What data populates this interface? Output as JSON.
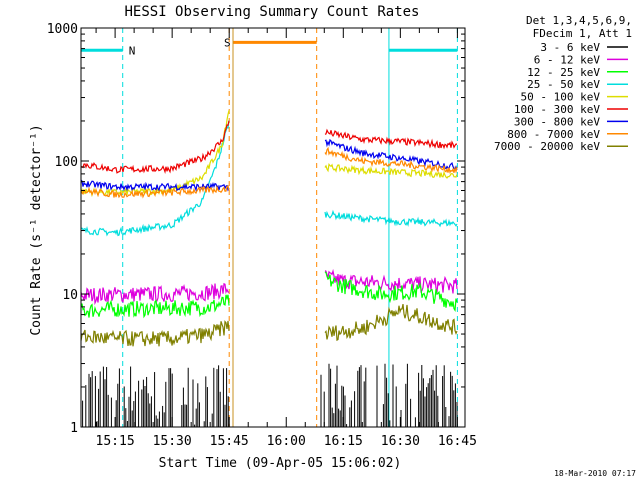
{
  "chart_data": {
    "type": "line",
    "title": "HESSI Observing Summary Count Rates",
    "xlabel": "Start Time (09-Apr-05 15:06:02)",
    "ylabel": "Count Rate (s⁻¹ detector⁻¹)",
    "yscale": "log",
    "ylim": [
      1,
      1000
    ],
    "xlim": [
      "15:06:02",
      "16:47:00"
    ],
    "x_ticks": [
      "15:15",
      "15:30",
      "15:45",
      "16:00",
      "16:15",
      "16:30",
      "16:45"
    ],
    "y_ticks": [
      "1",
      "10",
      "100",
      "1000"
    ],
    "legend_header": [
      "Det 1,3,4,5,6,9,",
      "FDecim 1, Att 1"
    ],
    "legend_position": "right",
    "series": [
      {
        "name": "3 - 6 keV",
        "color": "#000000",
        "segments": [
          {
            "x": [
              "15:06",
              "15:45"
            ],
            "y": [
              1.6,
              1.6
            ],
            "noisy": true,
            "range": [
              1.0,
              3.0
            ]
          },
          {
            "x": [
              "16:09",
              "16:45"
            ],
            "y": [
              1.6,
              1.6
            ],
            "noisy": true,
            "range": [
              1.0,
              3.0
            ]
          }
        ]
      },
      {
        "name": "6 - 12 keV",
        "color": "#dd00dd",
        "segments": [
          {
            "x": [
              "15:06",
              "15:15",
              "15:30",
              "15:40",
              "15:45"
            ],
            "y": [
              9.8,
              9.9,
              10.0,
              10.3,
              11.0
            ]
          },
          {
            "x": [
              "16:10",
              "16:15",
              "16:30",
              "16:45"
            ],
            "y": [
              13.5,
              12.5,
              12.0,
              11.5
            ]
          }
        ]
      },
      {
        "name": "12 - 25 keV",
        "color": "#00ff00",
        "segments": [
          {
            "x": [
              "15:06",
              "15:15",
              "15:30",
              "15:40",
              "15:45"
            ],
            "y": [
              7.5,
              7.7,
              7.8,
              8.0,
              8.8
            ]
          },
          {
            "x": [
              "16:10",
              "16:15",
              "16:25",
              "16:35",
              "16:45"
            ],
            "y": [
              13.0,
              11.5,
              10.0,
              10.5,
              8.5
            ]
          }
        ]
      },
      {
        "name": "25 - 50 keV",
        "color": "#00dddd",
        "segments": [
          {
            "x": [
              "15:06",
              "15:15",
              "15:30",
              "15:38",
              "15:42",
              "15:45"
            ],
            "y": [
              30,
              29,
              33,
              50,
              100,
              200
            ]
          },
          {
            "x": [
              "16:10",
              "16:20",
              "16:30",
              "16:45"
            ],
            "y": [
              40,
              37,
              35,
              34
            ]
          }
        ]
      },
      {
        "name": "50 - 100 keV",
        "color": "#dddd00",
        "segments": [
          {
            "x": [
              "15:06",
              "15:15",
              "15:30",
              "15:38",
              "15:43",
              "15:45"
            ],
            "y": [
              59,
              58,
              60,
              75,
              130,
              250
            ]
          },
          {
            "x": [
              "16:10",
              "16:20",
              "16:30",
              "16:45"
            ],
            "y": [
              90,
              85,
              82,
              78
            ]
          }
        ]
      },
      {
        "name": "100 - 300 keV",
        "color": "#ee0000",
        "segments": [
          {
            "x": [
              "15:06",
              "15:15",
              "15:30",
              "15:38",
              "15:43",
              "15:45"
            ],
            "y": [
              95,
              86,
              88,
              105,
              140,
              200
            ]
          },
          {
            "x": [
              "16:10",
              "16:20",
              "16:30",
              "16:45"
            ],
            "y": [
              165,
              145,
              140,
              130
            ]
          }
        ]
      },
      {
        "name": "300 - 800 keV",
        "color": "#0000ee",
        "segments": [
          {
            "x": [
              "15:06",
              "15:15",
              "15:30",
              "15:45"
            ],
            "y": [
              68,
              64,
              64,
              64
            ]
          },
          {
            "x": [
              "16:10",
              "16:20",
              "16:30",
              "16:45"
            ],
            "y": [
              140,
              115,
              105,
              90
            ]
          }
        ]
      },
      {
        "name": "800 - 7000 keV",
        "color": "#ff8800",
        "segments": [
          {
            "x": [
              "15:06",
              "15:15",
              "15:30",
              "15:45"
            ],
            "y": [
              60,
              56,
              58,
              62
            ]
          },
          {
            "x": [
              "16:10",
              "16:20",
              "16:30",
              "16:45"
            ],
            "y": [
              120,
              100,
              95,
              85
            ]
          }
        ]
      },
      {
        "name": "7000 - 20000 keV",
        "color": "#808000",
        "segments": [
          {
            "x": [
              "15:06",
              "15:15",
              "15:30",
              "15:40",
              "15:45"
            ],
            "y": [
              4.8,
              4.6,
              4.6,
              5.0,
              5.8
            ]
          },
          {
            "x": [
              "16:10",
              "16:20",
              "16:30",
              "16:45"
            ],
            "y": [
              5.0,
              5.5,
              7.5,
              5.5
            ]
          }
        ]
      }
    ],
    "annotations": [
      {
        "label": "N",
        "color": "#00dddd",
        "bar_x": [
          "15:06",
          "15:17"
        ],
        "bar_y": 680,
        "dashed_lines": [
          "15:17",
          "16:45"
        ],
        "solid_lines": [
          "16:27"
        ],
        "bar2_x": [
          "16:27",
          "16:45"
        ]
      },
      {
        "label": "S",
        "color": "#ff8800",
        "bar_x": [
          "15:46",
          "16:08"
        ],
        "bar_y": 780,
        "dashed_lines": [
          "15:45",
          "16:08"
        ]
      }
    ],
    "extra_vlines": [
      {
        "x": "15:46",
        "color": "#c89020"
      }
    ]
  },
  "footer": {
    "timestamp": "18-Mar-2010 07:17"
  },
  "colors": {
    "background": "#ffffff",
    "axis": "#000000"
  }
}
